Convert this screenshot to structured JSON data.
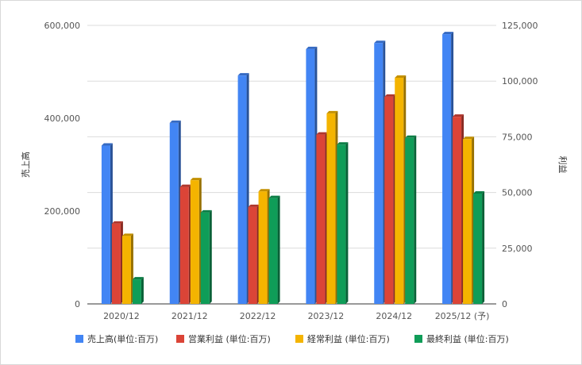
{
  "chart_data": {
    "type": "bar",
    "style": "3d-bar",
    "categories": [
      "2020/12",
      "2021/12",
      "2022/12",
      "2023/12",
      "2024/12",
      "2025/12 (予)"
    ],
    "series": [
      {
        "name": "売上高(単位:百万)",
        "axis": "left",
        "color": "#4285F4",
        "values": [
          341000,
          390000,
          492000,
          549000,
          562000,
          581000
        ]
      },
      {
        "name": "営業利益 (単位:百万)",
        "axis": "right",
        "color": "#DB4437",
        "values": [
          36000,
          52500,
          43500,
          76000,
          93000,
          84000
        ]
      },
      {
        "name": "経常利益 (単位:百万)",
        "axis": "right",
        "color": "#F4B400",
        "values": [
          30500,
          55500,
          50500,
          85500,
          101500,
          74000
        ]
      },
      {
        "name": "最終利益 (単位:百万)",
        "axis": "right",
        "color": "#0F9D58",
        "values": [
          11000,
          41000,
          47500,
          71500,
          74500,
          49500
        ]
      }
    ],
    "y_left": {
      "label": "売上高",
      "min": 0,
      "max": 600000,
      "ticks": [
        "0",
        "200,000",
        "400,000",
        "600,000"
      ]
    },
    "y_right": {
      "label": "利益",
      "min": 0,
      "max": 125000,
      "ticks": [
        "0",
        "25,000",
        "50,000",
        "75,000",
        "100,000",
        "125,000"
      ]
    },
    "legend_position": "bottom",
    "grid": true
  }
}
